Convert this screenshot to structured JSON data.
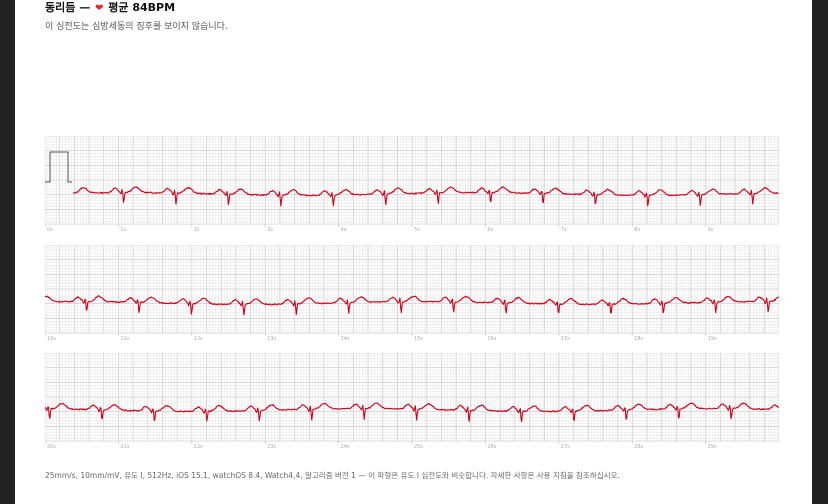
{
  "header": {
    "rhythm_label": "동리듬 —",
    "heart_icon": "heart-icon",
    "avg_label": "평균 84BPM",
    "summary": "이 심전도는 심방세동의 징후를 보이지 않습니다."
  },
  "strips": [
    {
      "time_labels": [
        "0s",
        "1s",
        "2s",
        "3s",
        "4s",
        "5s",
        "6s",
        "7s",
        "8s",
        "9s"
      ]
    },
    {
      "time_labels": [
        "10s",
        "11s",
        "12s",
        "13s",
        "14s",
        "15s",
        "16s",
        "17s",
        "18s",
        "19s"
      ]
    },
    {
      "time_labels": [
        "20s",
        "21s",
        "22s",
        "23s",
        "24s",
        "25s",
        "26s",
        "27s",
        "28s",
        "29s"
      ]
    }
  ],
  "footer": "25mm/s, 10mm/mV, 유도 I, 512Hz, iOS 15.1, watchOS 8.4, Watch4,4, 알고리즘 버전 1 — 이 파형은 유도 I 심전도와 비슷합니다. 자세한 사항은 사용 지침을 참조하십시오.",
  "colors": {
    "trace": "#d0021b",
    "grid_minor": "#e6e6e6",
    "grid_major": "#c8c8c8"
  }
}
